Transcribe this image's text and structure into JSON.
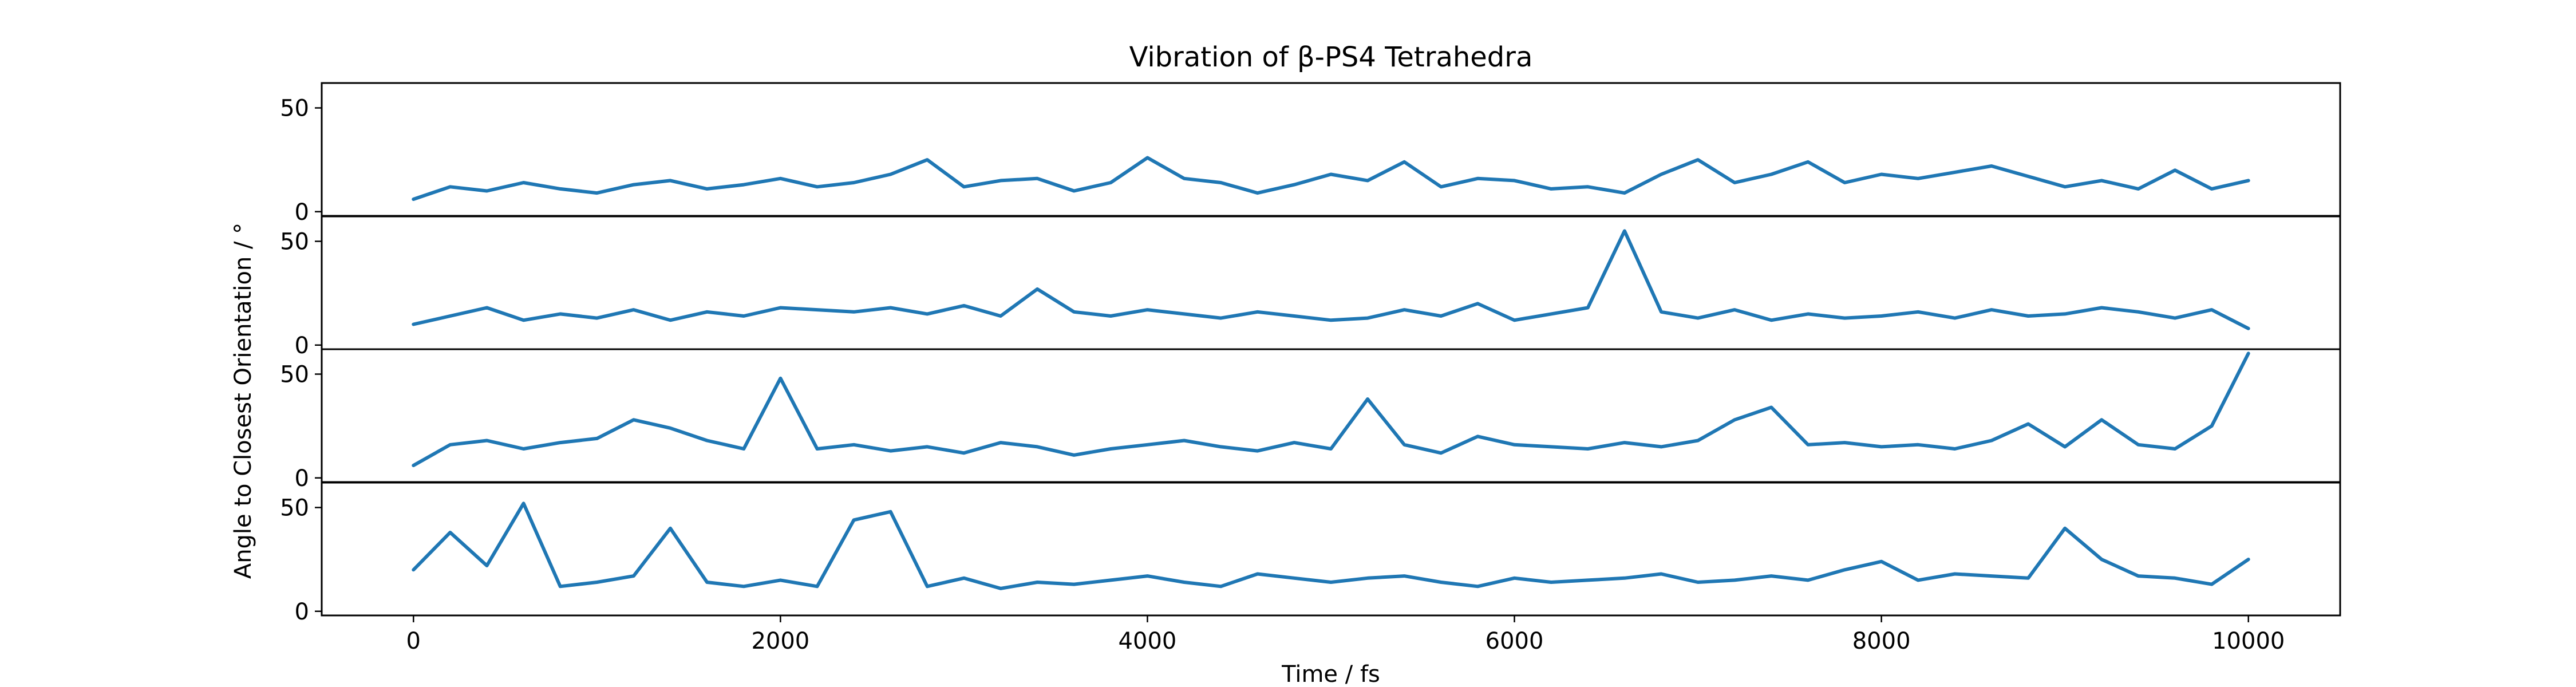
{
  "chart_data": {
    "type": "line",
    "title": "Vibration of β-PS4 Tetrahedra",
    "xlabel": "Time / fs",
    "ylabel": "Angle to Closest Orientation / °",
    "xlim": [
      -500,
      10500
    ],
    "xticks": [
      0,
      2000,
      4000,
      6000,
      8000,
      10000
    ],
    "x_tick_labels": [
      "0",
      "2000",
      "4000",
      "6000",
      "8000",
      "10000"
    ],
    "ylim": [
      -2,
      62
    ],
    "yticks": [
      0,
      50
    ],
    "y_tick_labels": [
      "0",
      "50"
    ],
    "grid": false,
    "legend": "none",
    "color": "#1f77b4",
    "x": [
      0,
      200,
      400,
      600,
      800,
      1000,
      1200,
      1400,
      1600,
      1800,
      2000,
      2200,
      2400,
      2600,
      2800,
      3000,
      3200,
      3400,
      3600,
      3800,
      4000,
      4200,
      4400,
      4600,
      4800,
      5000,
      5200,
      5400,
      5600,
      5800,
      6000,
      6200,
      6400,
      6600,
      6800,
      7000,
      7200,
      7400,
      7600,
      7800,
      8000,
      8200,
      8400,
      8600,
      8800,
      9000,
      9200,
      9400,
      9600,
      9800,
      10000
    ],
    "series": [
      {
        "values": [
          6,
          12,
          10,
          14,
          11,
          9,
          13,
          15,
          11,
          13,
          16,
          12,
          14,
          18,
          25,
          12,
          15,
          16,
          10,
          14,
          26,
          16,
          14,
          9,
          13,
          18,
          15,
          24,
          12,
          16,
          15,
          11,
          12,
          9,
          18,
          25,
          14,
          18,
          24,
          14,
          18,
          16,
          19,
          22,
          17,
          12,
          15,
          11,
          20,
          11,
          15
        ]
      },
      {
        "values": [
          10,
          14,
          18,
          12,
          15,
          13,
          17,
          12,
          16,
          14,
          18,
          17,
          16,
          18,
          15,
          19,
          14,
          27,
          16,
          14,
          17,
          15,
          13,
          16,
          14,
          12,
          13,
          17,
          14,
          20,
          12,
          15,
          18,
          55,
          16,
          13,
          17,
          12,
          15,
          13,
          14,
          16,
          13,
          17,
          14,
          15,
          18,
          16,
          13,
          17,
          8
        ]
      },
      {
        "values": [
          6,
          16,
          18,
          14,
          17,
          19,
          28,
          24,
          18,
          14,
          48,
          14,
          16,
          13,
          15,
          12,
          17,
          15,
          11,
          14,
          16,
          18,
          15,
          13,
          17,
          14,
          38,
          16,
          12,
          20,
          16,
          15,
          14,
          17,
          15,
          18,
          28,
          34,
          16,
          17,
          15,
          16,
          14,
          18,
          26,
          15,
          28,
          16,
          14,
          25,
          60
        ]
      },
      {
        "values": [
          20,
          38,
          22,
          52,
          12,
          14,
          17,
          40,
          14,
          12,
          15,
          12,
          44,
          48,
          12,
          16,
          11,
          14,
          13,
          15,
          17,
          14,
          12,
          18,
          16,
          14,
          16,
          17,
          14,
          12,
          16,
          14,
          15,
          16,
          18,
          14,
          15,
          17,
          15,
          20,
          24,
          15,
          18,
          17,
          16,
          40,
          25,
          17,
          16,
          13,
          25
        ]
      }
    ]
  }
}
